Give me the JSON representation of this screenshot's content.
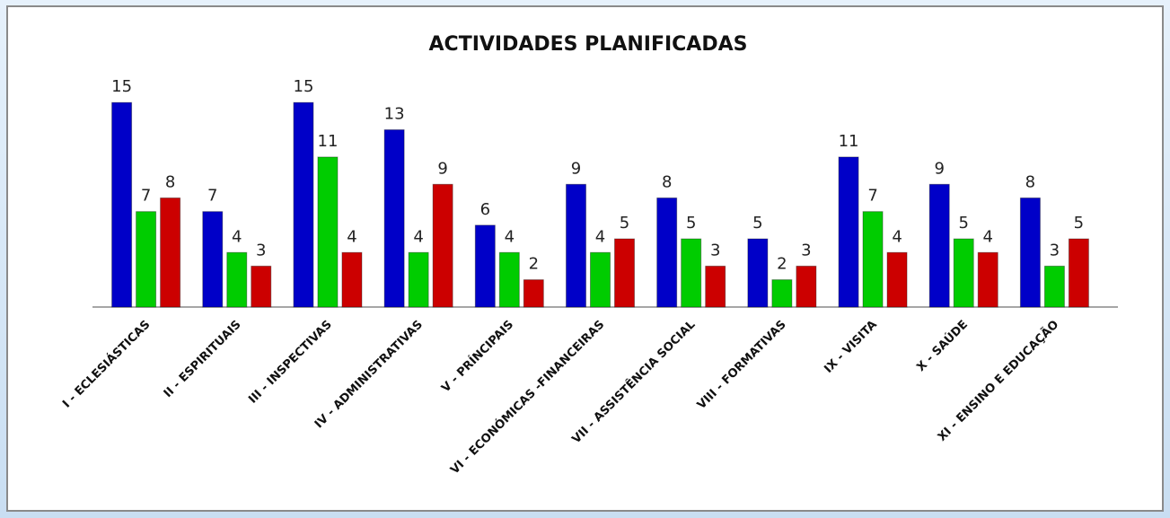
{
  "chart_data": {
    "type": "bar",
    "title": "ACTIVIDADES PLANIFICADAS",
    "categories": [
      "I - ECLESIÁSTICAS",
      "II - ESPIRITUAIS",
      "III - INSPECTIVAS",
      "IV - ADMINISTRATIVAS",
      "V - PRÍNCIPAIS",
      "VI - ECONÓMICAS -FINANCEIRAS",
      "VII - ASSISTÊNCIA SOCIAL",
      "VIII - FORMATIVAS",
      "IX - VISITA",
      "X - SAÚDE",
      "XI - ENSINO E EDUCAÇÃO"
    ],
    "series": [
      {
        "color": "#0000c8",
        "values": [
          15,
          7,
          15,
          13,
          6,
          9,
          8,
          5,
          11,
          9,
          8
        ]
      },
      {
        "color": "#00cc00",
        "values": [
          7,
          4,
          11,
          4,
          4,
          4,
          5,
          2,
          7,
          5,
          3
        ]
      },
      {
        "color": "#cc0000",
        "values": [
          8,
          3,
          4,
          9,
          2,
          5,
          3,
          3,
          4,
          4,
          5
        ]
      }
    ],
    "ylim": [
      0,
      16
    ]
  }
}
